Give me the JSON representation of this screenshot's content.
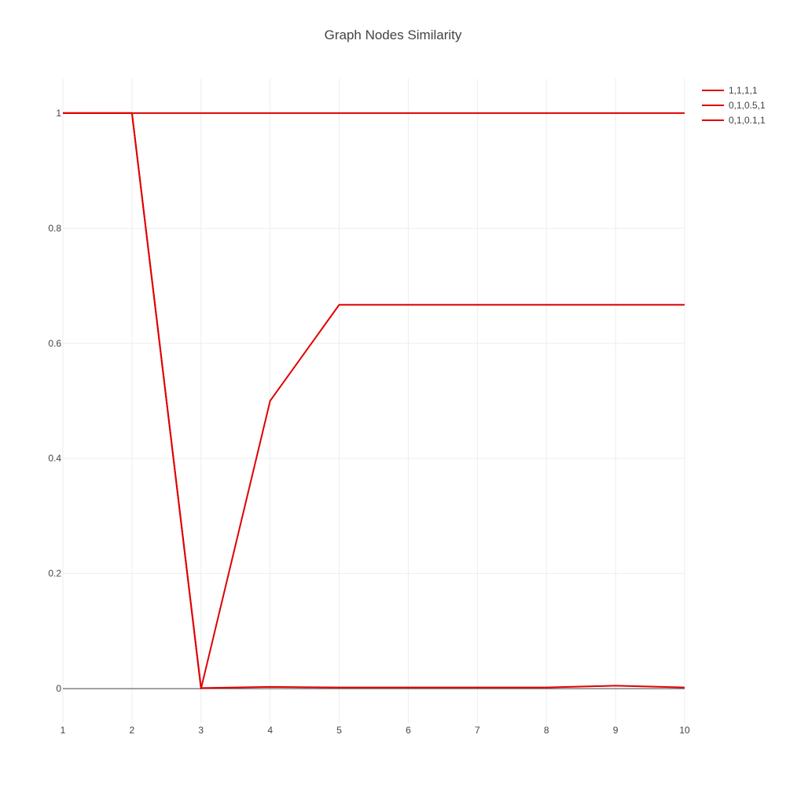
{
  "chart_data": {
    "type": "line",
    "title": "Graph Nodes Similarity",
    "xlabel": "",
    "ylabel": "",
    "x": [
      1,
      2,
      3,
      4,
      5,
      6,
      7,
      8,
      9,
      10
    ],
    "xlim": [
      1,
      10
    ],
    "ylim": [
      -0.06,
      1.06
    ],
    "x_ticks": [
      1,
      2,
      3,
      4,
      5,
      6,
      7,
      8,
      9,
      10
    ],
    "y_ticks": [
      0,
      0.2,
      0.4,
      0.6,
      0.8,
      1
    ],
    "grid": true,
    "legend_position": "top-right",
    "series": [
      {
        "name": "1,1,1,1",
        "color": "#e00000",
        "values": [
          1,
          1,
          1,
          1,
          1,
          1,
          1,
          1,
          1,
          1
        ]
      },
      {
        "name": "0,1,0.5,1",
        "color": "#e00000",
        "values": [
          1,
          1,
          0,
          0.5,
          0.667,
          0.667,
          0.667,
          0.667,
          0.667,
          0.667
        ]
      },
      {
        "name": "0,1,0.1,1",
        "color": "#e00000",
        "values": [
          1,
          1,
          0.001,
          0.003,
          0.002,
          0.002,
          0.002,
          0.002,
          0.005,
          0.002
        ]
      }
    ]
  }
}
